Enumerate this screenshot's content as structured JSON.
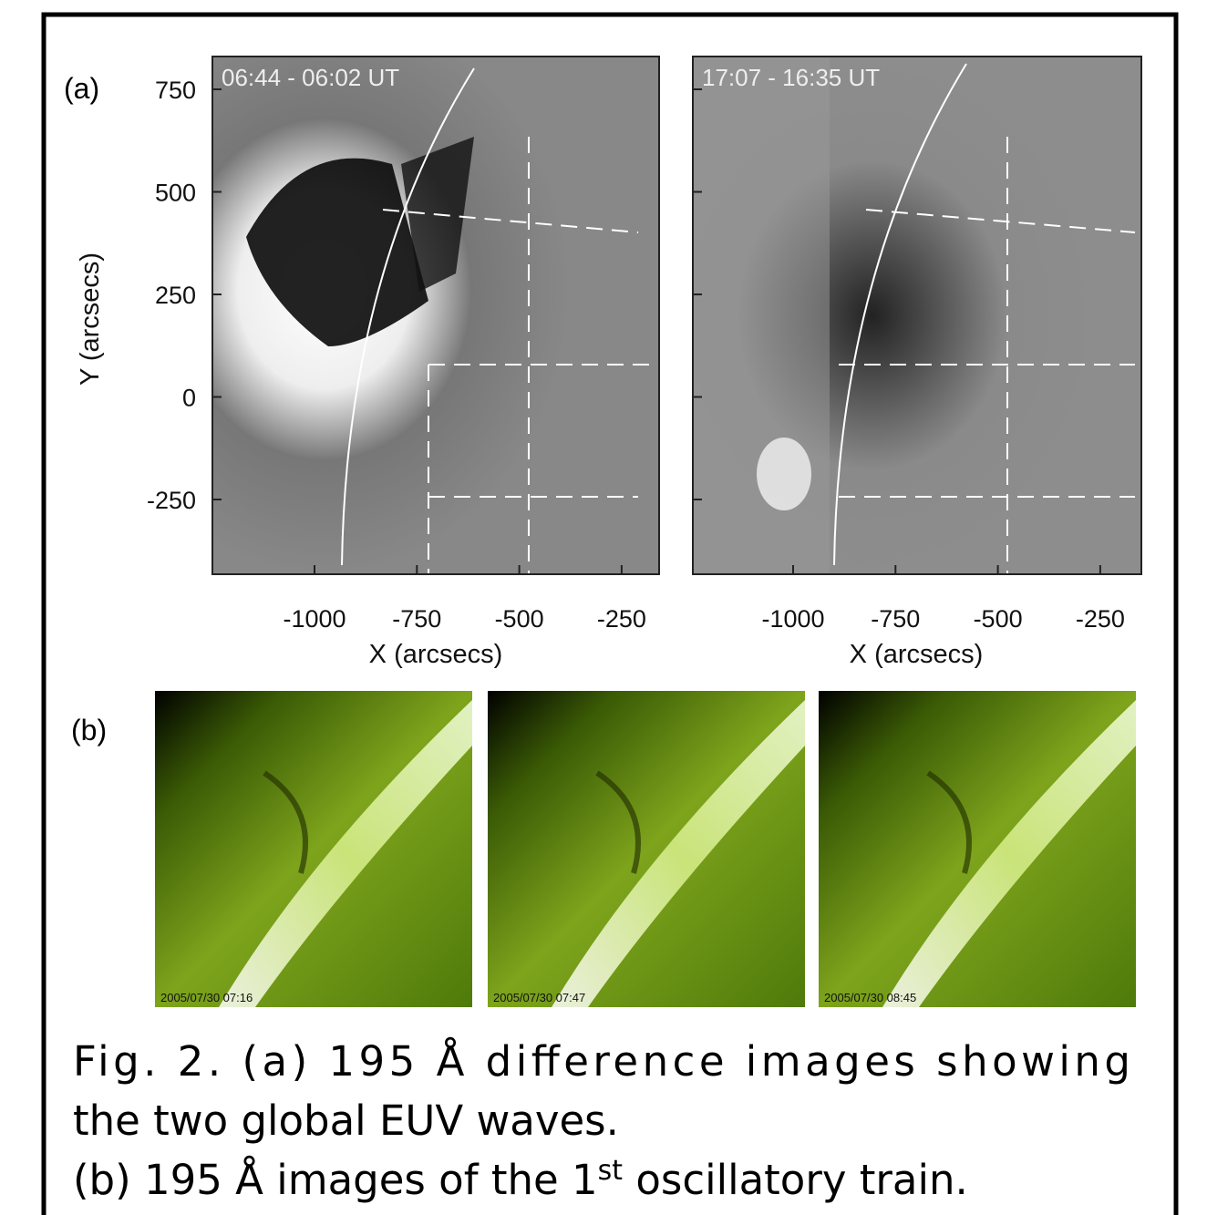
{
  "panel_a": {
    "label": "(a)",
    "y_axis_label": "Y (arcsecs)",
    "x_axis_label": "X (arcsecs)",
    "yticks": [
      750,
      500,
      250,
      0,
      -250
    ],
    "xticks": [
      -1000,
      -750,
      -500,
      -250
    ],
    "images": [
      {
        "time_label": "06:44 - 06:02 UT"
      },
      {
        "time_label": "17:07 - 16:35 UT"
      }
    ]
  },
  "panel_b": {
    "label": "(b)",
    "images": [
      {
        "timestamp": "2005/07/30 07:16"
      },
      {
        "timestamp": "2005/07/30 07:47"
      },
      {
        "timestamp": "2005/07/30 08:45"
      }
    ]
  },
  "caption": {
    "line1": "Fig. 2. (a) 195 Å difference images showing",
    "line2": "the two global EUV waves.",
    "line3": {
      "before": "(b) 195 Å images of the 1",
      "sup": "st",
      "after": " oscillatory train."
    }
  }
}
